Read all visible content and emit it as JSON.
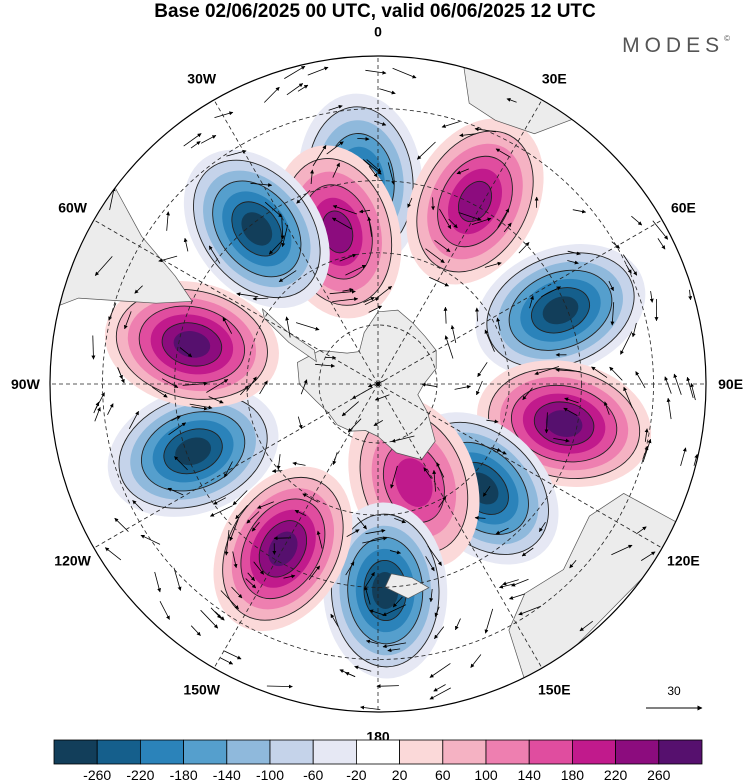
{
  "title": "Base 02/06/2025 00 UTC, valid 06/06/2025 12 UTC",
  "logo": {
    "text": "MODES",
    "mark": "©"
  },
  "map": {
    "projection": "south-polar-stereographic",
    "longitude_labels": [
      {
        "lon": 0,
        "text": "0"
      },
      {
        "lon": 30,
        "text": "30E"
      },
      {
        "lon": 60,
        "text": "60E"
      },
      {
        "lon": 90,
        "text": "90E"
      },
      {
        "lon": 120,
        "text": "120E"
      },
      {
        "lon": 150,
        "text": "150E"
      },
      {
        "lon": 180,
        "text": "180"
      },
      {
        "lon": -150,
        "text": "150W"
      },
      {
        "lon": -120,
        "text": "120W"
      },
      {
        "lon": -90,
        "text": "90W"
      },
      {
        "lon": -60,
        "text": "60W"
      },
      {
        "lon": -30,
        "text": "30W"
      }
    ],
    "anomaly_centers": [
      {
        "lon": -5,
        "r": 0.62,
        "value": -200
      },
      {
        "lon": -15,
        "r": 0.48,
        "value": 220
      },
      {
        "lon": -38,
        "r": 0.6,
        "value": -260
      },
      {
        "lon": 28,
        "r": 0.63,
        "value": 220
      },
      {
        "lon": 68,
        "r": 0.6,
        "value": -260
      },
      {
        "lon": 102,
        "r": 0.58,
        "value": 260
      },
      {
        "lon": 135,
        "r": 0.45,
        "value": -240
      },
      {
        "lon": 160,
        "r": 0.32,
        "value": 180
      },
      {
        "lon": 178,
        "r": 0.63,
        "value": -260
      },
      {
        "lon": -150,
        "r": 0.58,
        "value": 260
      },
      {
        "lon": -110,
        "r": 0.6,
        "value": -260
      },
      {
        "lon": -78,
        "r": 0.58,
        "value": 260
      }
    ],
    "reference_vector": {
      "value": "30"
    }
  },
  "colorbar": {
    "colors": [
      "#123e5a",
      "#155f8c",
      "#2b83ba",
      "#559fcd",
      "#8fb9dc",
      "#c5d3ea",
      "#e6e8f4",
      "#ffffff",
      "#fbd9d9",
      "#f5b2c3",
      "#ee7fb0",
      "#e04d9f",
      "#c11a8c",
      "#8c0c7e",
      "#56106e"
    ],
    "ticks": [
      "-260",
      "-220",
      "-180",
      "-140",
      "-100",
      "-60",
      "-20",
      "20",
      "60",
      "100",
      "140",
      "180",
      "220",
      "260"
    ]
  }
}
